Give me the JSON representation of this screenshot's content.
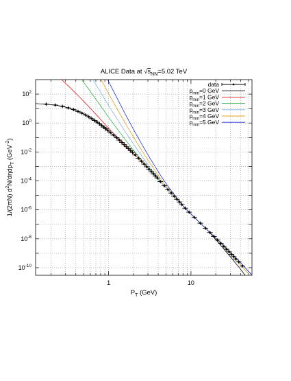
{
  "chart_data": {
    "type": "scatter",
    "title": {
      "prefix": "ALICE Data at ",
      "sqrt": "√",
      "s": "s",
      "sub": "NN",
      "suffix": "=5.02 TeV"
    },
    "xlabel": {
      "main": "P",
      "sub": "T",
      "rest": " (GeV)"
    },
    "ylabel": {
      "p1": "1/(2πN) d",
      "sup1": "2",
      "p2": "N/dηdp",
      "sub1": "T",
      "p3": " (GeV",
      "sup2": "-2",
      "p4": ")"
    },
    "xscale": "log",
    "yscale": "log",
    "xlim": [
      0.13,
      55
    ],
    "ylim": [
      3e-11,
      1000
    ],
    "grid": true,
    "legend_position": "top-right",
    "x_ticks": [
      {
        "value": 1,
        "label": "1"
      },
      {
        "value": 10,
        "label": "10"
      }
    ],
    "y_ticks": [
      {
        "value": 100,
        "mant": "10",
        "exp": "2"
      },
      {
        "value": 1,
        "mant": "10",
        "exp": "0"
      },
      {
        "value": 0.01,
        "mant": "10",
        "exp": "-2"
      },
      {
        "value": 0.0001,
        "mant": "10",
        "exp": "-4"
      },
      {
        "value": 1e-06,
        "mant": "10",
        "exp": "-6"
      },
      {
        "value": 1e-08,
        "mant": "10",
        "exp": "-8"
      },
      {
        "value": 1e-10,
        "mant": "10",
        "exp": "-10"
      }
    ],
    "data_series": {
      "name": "data",
      "color": "#000000",
      "points": [
        [
          0.175,
          20.0
        ],
        [
          0.225,
          17.5
        ],
        [
          0.275,
          14.2
        ],
        [
          0.325,
          11.1
        ],
        [
          0.375,
          8.5
        ],
        [
          0.425,
          6.4
        ],
        [
          0.475,
          4.8
        ],
        [
          0.525,
          3.6
        ],
        [
          0.575,
          2.7
        ],
        [
          0.625,
          2.0
        ],
        [
          0.675,
          1.5
        ],
        [
          0.725,
          1.15
        ],
        [
          0.775,
          0.88
        ],
        [
          0.825,
          0.67
        ],
        [
          0.875,
          0.52
        ],
        [
          0.925,
          0.4
        ],
        [
          0.975,
          0.31
        ],
        [
          1.05,
          0.22
        ],
        [
          1.15,
          0.145
        ],
        [
          1.25,
          0.097
        ],
        [
          1.35,
          0.066
        ],
        [
          1.45,
          0.046
        ],
        [
          1.55,
          0.032
        ],
        [
          1.65,
          0.023
        ],
        [
          1.75,
          0.017
        ],
        [
          1.85,
          0.0125
        ],
        [
          1.95,
          0.0093
        ],
        [
          2.1,
          0.0062
        ],
        [
          2.3,
          0.0037
        ],
        [
          2.5,
          0.0023
        ],
        [
          2.7,
          0.00145
        ],
        [
          2.9,
          0.00095
        ],
        [
          3.1,
          0.00064
        ],
        [
          3.3,
          0.00044
        ],
        [
          3.5,
          0.00031
        ],
        [
          3.7,
          0.00022
        ],
        [
          3.9,
          0.00016
        ],
        [
          4.25,
          9e-05
        ],
        [
          4.75,
          4.6e-05
        ],
        [
          5.25,
          2.5e-05
        ],
        [
          5.75,
          1.45e-05
        ],
        [
          6.25,
          8.7e-06
        ],
        [
          6.75,
          5.4e-06
        ],
        [
          7.25,
          3.5e-06
        ],
        [
          7.75,
          2.3e-06
        ],
        [
          8.5,
          1.3e-06
        ],
        [
          9.5,
          6.9e-07
        ],
        [
          11.0,
          3e-07
        ],
        [
          13.0,
          1.2e-07
        ],
        [
          15.0,
          5.4e-08
        ],
        [
          17.0,
          2.7e-08
        ],
        [
          19.0,
          1.45e-08
        ],
        [
          21.0,
          8.2e-09
        ],
        [
          23.0,
          4.9e-09
        ],
        [
          25.0,
          3e-09
        ],
        [
          27.0,
          1.9e-09
        ],
        [
          29.0,
          1.25e-09
        ],
        [
          31.0,
          8.4e-10
        ],
        [
          33.0,
          5.8e-10
        ],
        [
          35.0,
          4e-10
        ],
        [
          38.0,
          2.5e-10
        ],
        [
          42.0,
          1.3e-10
        ]
      ]
    },
    "series": [
      {
        "name": "p",
        "sub": "min",
        "rest": "=0 GeV",
        "color": "#000000",
        "pmin": 0
      },
      {
        "name": "p",
        "sub": "min",
        "rest": "=1 GeV",
        "color": "#e41a1c",
        "pmin": 1
      },
      {
        "name": "p",
        "sub": "min",
        "rest": "=2 GeV",
        "color": "#33b34a",
        "pmin": 2
      },
      {
        "name": "p",
        "sub": "min",
        "rest": "=3 GeV",
        "color": "#7fb3e6",
        "pmin": 3
      },
      {
        "name": "p",
        "sub": "min",
        "rest": "=4 GeV",
        "color": "#e6a21a",
        "pmin": 4
      },
      {
        "name": "p",
        "sub": "min",
        "rest": "=5 GeV",
        "color": "#1f2fd6",
        "pmin": 5
      }
    ]
  }
}
